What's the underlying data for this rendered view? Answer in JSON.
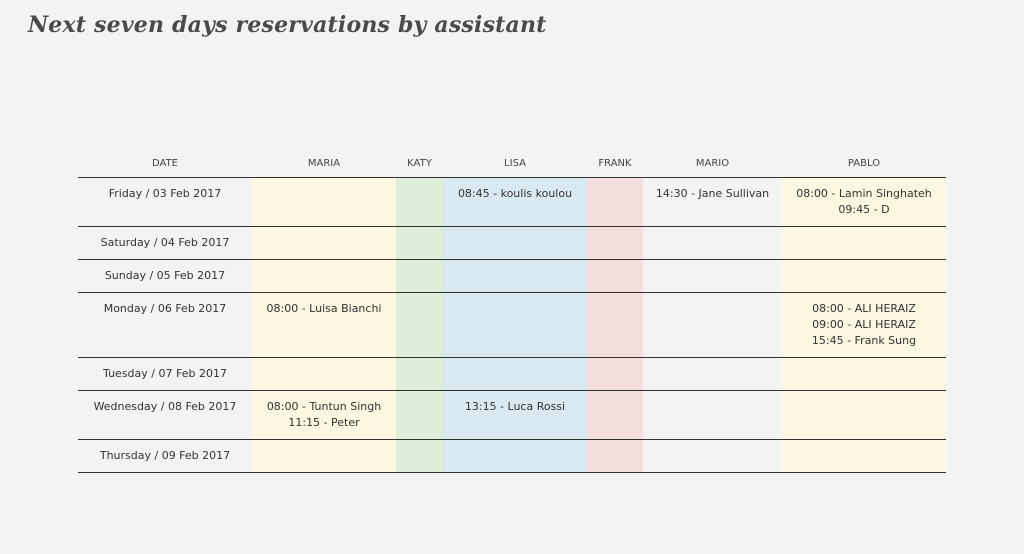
{
  "title": "Next seven days reservations by assistant",
  "table": {
    "headers": {
      "date": "DATE",
      "maria": "MARIA",
      "katy": "KATY",
      "lisa": "LISA",
      "frank": "FRANK",
      "mario": "MARIO",
      "pablo": "PABLO"
    },
    "colors": {
      "maria": "#fcf7e0",
      "katy": "#ddeed9",
      "lisa": "#d9e9f1",
      "frank": "#f3dddd",
      "mario": "#f3f3f3",
      "pablo": "#fcf7e0"
    },
    "rows": [
      {
        "date": "Friday / 03 Feb 2017",
        "maria": [],
        "katy": [],
        "lisa": [
          "08:45 - koulis koulou"
        ],
        "frank": [],
        "mario": [
          "14:30 - Jane Sullivan"
        ],
        "pablo": [
          "08:00 - Lamin Singhateh",
          "09:45 - D"
        ]
      },
      {
        "date": "Saturday / 04 Feb 2017",
        "maria": [],
        "katy": [],
        "lisa": [],
        "frank": [],
        "mario": [],
        "pablo": []
      },
      {
        "date": "Sunday / 05 Feb 2017",
        "maria": [],
        "katy": [],
        "lisa": [],
        "frank": [],
        "mario": [],
        "pablo": []
      },
      {
        "date": "Monday / 06 Feb 2017",
        "maria": [
          "08:00 - Luisa Bianchi"
        ],
        "katy": [],
        "lisa": [],
        "frank": [],
        "mario": [],
        "pablo": [
          "08:00 - ALI HERAIZ",
          "09:00 - ALI HERAIZ",
          "15:45 - Frank Sung"
        ]
      },
      {
        "date": "Tuesday / 07 Feb 2017",
        "maria": [],
        "katy": [],
        "lisa": [],
        "frank": [],
        "mario": [],
        "pablo": []
      },
      {
        "date": "Wednesday / 08 Feb 2017",
        "maria": [
          "08:00 - Tuntun Singh",
          "11:15 - Peter"
        ],
        "katy": [],
        "lisa": [
          "13:15 - Luca Rossi"
        ],
        "frank": [],
        "mario": [],
        "pablo": []
      },
      {
        "date": "Thursday / 09 Feb 2017",
        "maria": [],
        "katy": [],
        "lisa": [],
        "frank": [],
        "mario": [],
        "pablo": []
      }
    ]
  }
}
